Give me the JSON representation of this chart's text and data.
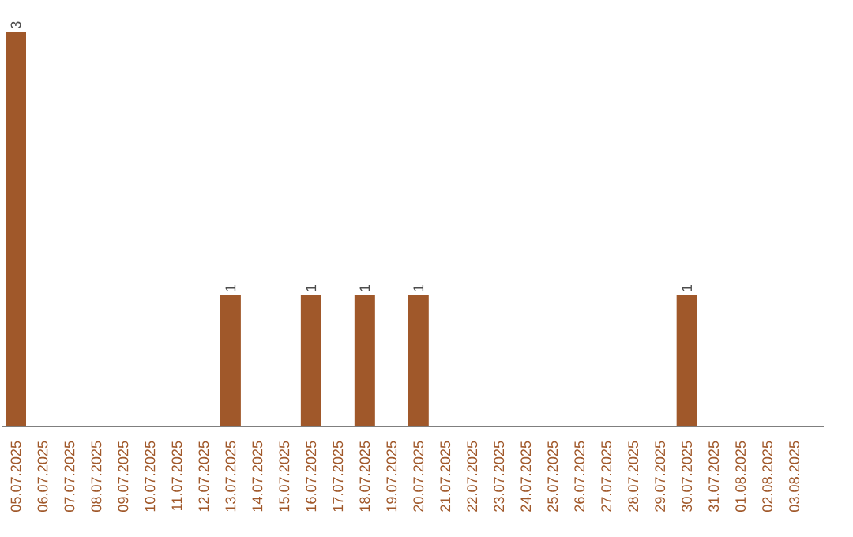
{
  "chart_data": {
    "type": "bar",
    "categories": [
      "05.07.2025",
      "06.07.2025",
      "07.07.2025",
      "08.07.2025",
      "09.07.2025",
      "10.07.2025",
      "11.07.2025",
      "12.07.2025",
      "13.07.2025",
      "14.07.2025",
      "15.07.2025",
      "16.07.2025",
      "17.07.2025",
      "18.07.2025",
      "19.07.2025",
      "20.07.2025",
      "21.07.2025",
      "22.07.2025",
      "23.07.2025",
      "24.07.2025",
      "25.07.2025",
      "26.07.2025",
      "27.07.2025",
      "28.07.2025",
      "29.07.2025",
      "30.07.2025",
      "31.07.2025",
      "01.08.2025",
      "02.08.2025",
      "03.08.2025"
    ],
    "values": [
      3,
      0,
      0,
      0,
      0,
      0,
      0,
      0,
      1,
      0,
      0,
      1,
      0,
      1,
      0,
      1,
      0,
      0,
      0,
      0,
      0,
      0,
      0,
      0,
      0,
      1,
      0,
      0,
      0,
      0
    ],
    "value_labels": [
      "3",
      null,
      null,
      null,
      null,
      null,
      null,
      null,
      "1",
      null,
      null,
      "1",
      null,
      "1",
      null,
      "1",
      null,
      null,
      null,
      null,
      null,
      null,
      null,
      null,
      null,
      "1",
      null,
      null,
      null,
      null
    ],
    "color": "#a0582a"
  }
}
